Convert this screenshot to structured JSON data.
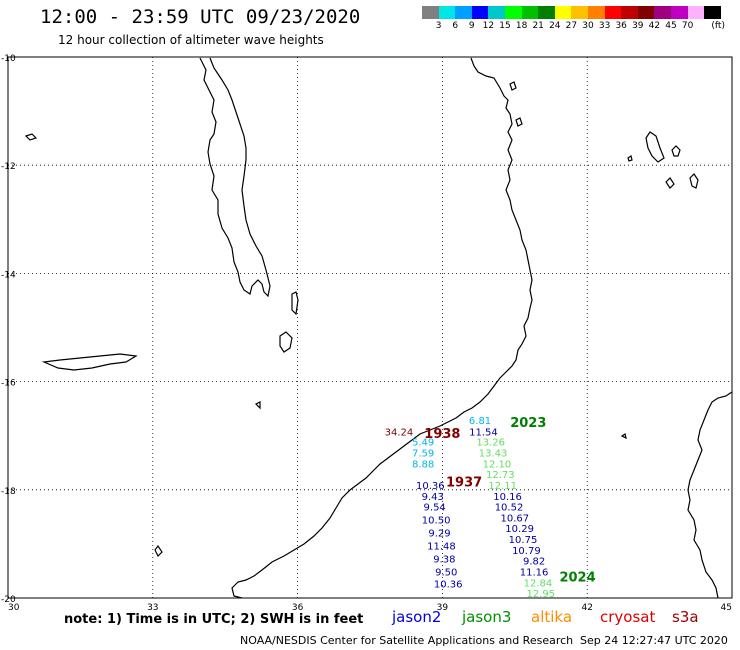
{
  "title": "12:00 - 23:59 UTC 09/23/2020",
  "subtitle": "12 hour collection of altimeter wave heights",
  "legend": {
    "unit": "(ft)",
    "colors": [
      "#808080",
      "#00e5e5",
      "#00a0ff",
      "#0000ff",
      "#00c8c8",
      "#00ff00",
      "#00c000",
      "#008000",
      "#ffff00",
      "#ffc000",
      "#ff8000",
      "#ff0000",
      "#c00000",
      "#800000",
      "#a00080",
      "#c000c0",
      "#ffb0ff",
      "#000000"
    ],
    "labels": [
      "3",
      "6",
      "9",
      "12",
      "15",
      "18",
      "21",
      "24",
      "27",
      "30",
      "33",
      "36",
      "39",
      "42",
      "45",
      "70"
    ]
  },
  "axes": {
    "y_labels": [
      "-10",
      "-12",
      "-14",
      "-16",
      "-18",
      "-20"
    ],
    "x_labels": [
      "30",
      "33",
      "36",
      "39",
      "42",
      "45"
    ]
  },
  "data_points": [
    {
      "text": "6.81",
      "lon": 39.78,
      "lat": -16.71,
      "color": "#00b8e8"
    },
    {
      "text": "11.54",
      "lon": 39.85,
      "lat": -16.92,
      "color": "#0000a0"
    },
    {
      "text": "13.26",
      "lon": 40.0,
      "lat": -17.11,
      "color": "#60e060"
    },
    {
      "text": "13.43",
      "lon": 40.05,
      "lat": -17.31,
      "color": "#60e060"
    },
    {
      "text": "12.10",
      "lon": 40.13,
      "lat": -17.51,
      "color": "#60e060"
    },
    {
      "text": "12.73",
      "lon": 40.2,
      "lat": -17.71,
      "color": "#60e060"
    },
    {
      "text": "12.11",
      "lon": 40.25,
      "lat": -17.91,
      "color": "#60e060"
    },
    {
      "text": "34.24",
      "lon": 38.1,
      "lat": -16.92,
      "color": "#800000"
    },
    {
      "text": "5.49",
      "lon": 38.6,
      "lat": -17.11,
      "color": "#00b8e8"
    },
    {
      "text": "7.59",
      "lon": 38.6,
      "lat": -17.31,
      "color": "#00b8e8"
    },
    {
      "text": "8.88",
      "lon": 38.6,
      "lat": -17.51,
      "color": "#00b8e8"
    },
    {
      "text": "10.36",
      "lon": 38.75,
      "lat": -17.91,
      "color": "#0000a0"
    },
    {
      "text": "9.43",
      "lon": 38.8,
      "lat": -18.11,
      "color": "#0000a0"
    },
    {
      "text": "9.54",
      "lon": 38.84,
      "lat": -18.31,
      "color": "#0000a0"
    },
    {
      "text": "10.50",
      "lon": 38.87,
      "lat": -18.55,
      "color": "#0000a0"
    },
    {
      "text": "9.29",
      "lon": 38.94,
      "lat": -18.79,
      "color": "#0000a0"
    },
    {
      "text": "11.48",
      "lon": 38.98,
      "lat": -19.03,
      "color": "#0000a0"
    },
    {
      "text": "9.38",
      "lon": 39.04,
      "lat": -19.27,
      "color": "#0000a0"
    },
    {
      "text": "9.50",
      "lon": 39.08,
      "lat": -19.51,
      "color": "#0000a0"
    },
    {
      "text": "10.36",
      "lon": 39.12,
      "lat": -19.73,
      "color": "#0000a0"
    },
    {
      "text": "10.16",
      "lon": 40.35,
      "lat": -18.11,
      "color": "#0000a0"
    },
    {
      "text": "10.52",
      "lon": 40.38,
      "lat": -18.31,
      "color": "#0000a0"
    },
    {
      "text": "10.67",
      "lon": 40.5,
      "lat": -18.51,
      "color": "#0000a0"
    },
    {
      "text": "10.29",
      "lon": 40.6,
      "lat": -18.71,
      "color": "#0000a0"
    },
    {
      "text": "10.75",
      "lon": 40.67,
      "lat": -18.91,
      "color": "#0000a0"
    },
    {
      "text": "10.79",
      "lon": 40.74,
      "lat": -19.11,
      "color": "#0000a0"
    },
    {
      "text": "9.82",
      "lon": 40.9,
      "lat": -19.31,
      "color": "#0000a0"
    },
    {
      "text": "11.16",
      "lon": 40.9,
      "lat": -19.51,
      "color": "#0000a0"
    },
    {
      "text": "12.84",
      "lon": 40.98,
      "lat": -19.71,
      "color": "#60e060"
    },
    {
      "text": "12.95",
      "lon": 41.04,
      "lat": -19.91,
      "color": "#60e060"
    }
  ],
  "time_labels": [
    {
      "text": "2023",
      "lon": 40.78,
      "lat": -16.75,
      "color": "#008000"
    },
    {
      "text": "1938",
      "lon": 39.0,
      "lat": -16.95,
      "color": "#800000"
    },
    {
      "text": "1937",
      "lon": 39.45,
      "lat": -17.85,
      "color": "#800000"
    },
    {
      "text": "2024",
      "lon": 41.8,
      "lat": -19.6,
      "color": "#008000"
    }
  ],
  "note": "note: 1) Time is in UTC; 2) SWH is in feet",
  "satellites": [
    {
      "name": "jason2",
      "color": "#0000e0"
    },
    {
      "name": "jason3",
      "color": "#009000"
    },
    {
      "name": "altika",
      "color": "#ff8c00"
    },
    {
      "name": "cryosat",
      "color": "#e00000"
    },
    {
      "name": "s3a",
      "color": "#a00000"
    }
  ],
  "footer": "NOAA/NESDIS Center for Satellite Applications and Research",
  "timestamp": "Sep 24 12:27:47 UTC 2020"
}
